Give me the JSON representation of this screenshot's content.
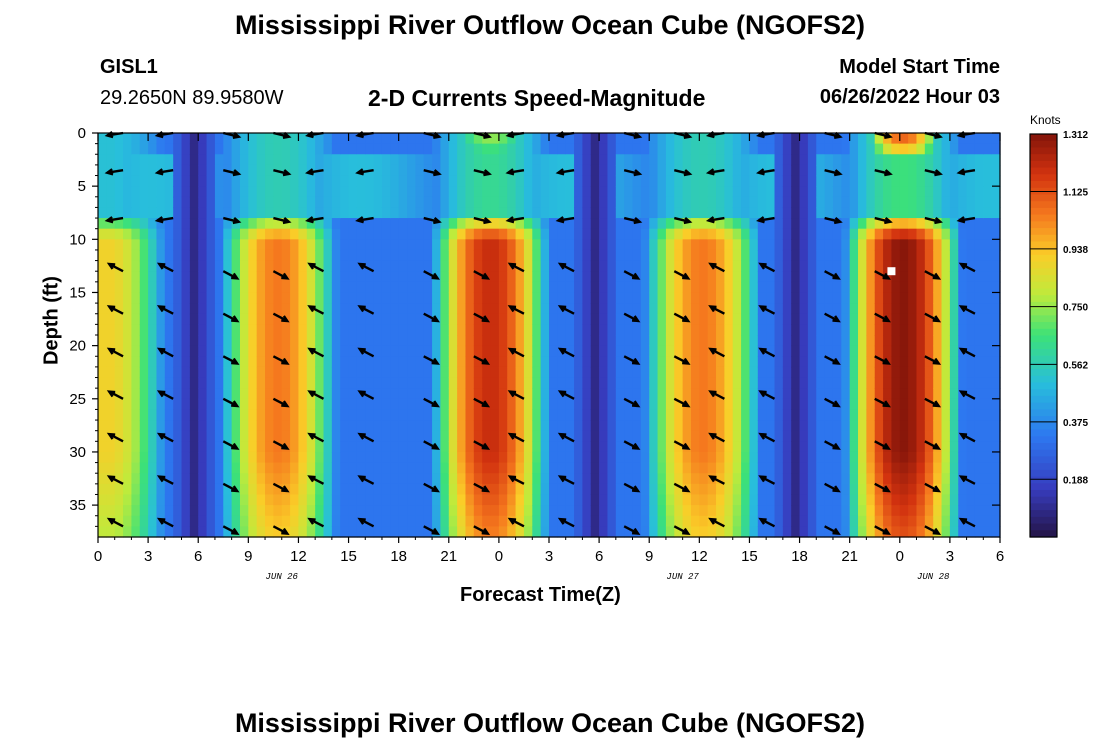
{
  "page": {
    "title": "Mississippi River Outflow Ocean Cube (NGOFS2)",
    "title_repeat": "Mississippi River Outflow Ocean Cube (NGOFS2)",
    "station_id": "GISL1",
    "coordinates": "29.2650N  89.9580W",
    "subtitle": "2-D Currents Speed-Magnitude",
    "model_start_label": "Model Start Time",
    "model_start_value": "06/26/2022 Hour 03"
  },
  "chart_data": {
    "type": "heatmap",
    "title": "2-D Currents Speed-Magnitude",
    "xlabel": "Forecast Time(Z)",
    "ylabel": "Depth (ft)",
    "x_hours_range": [
      0,
      54
    ],
    "xlim_tick_labels": [
      "0",
      "3",
      "6",
      "9",
      "12",
      "15",
      "18",
      "21",
      "0",
      "3",
      "6",
      "9",
      "12",
      "15",
      "18",
      "21",
      "0",
      "3",
      "6"
    ],
    "date_labels": [
      {
        "label": "JUN 26",
        "hour": 11
      },
      {
        "label": "JUN 27",
        "hour": 35
      },
      {
        "label": "JUN 28",
        "hour": 50
      }
    ],
    "y_ticks": [
      "0",
      "5",
      "10",
      "15",
      "20",
      "25",
      "30",
      "35"
    ],
    "ylim": [
      0,
      38
    ],
    "colorbar": {
      "unit": "Knots",
      "min": 0.0,
      "max": 1.312,
      "tick_labels": [
        "1.312",
        "1.125",
        "0.938",
        "0.750",
        "0.562",
        "0.375",
        "0.188"
      ],
      "tick_values": [
        1.312,
        1.125,
        0.938,
        0.75,
        0.562,
        0.375,
        0.188
      ]
    },
    "speed_peaks": [
      {
        "center_hour": 0.5,
        "peak": 0.9
      },
      {
        "center_hour": 10.8,
        "peak": 1.05
      },
      {
        "center_hour": 23.5,
        "peak": 1.2
      },
      {
        "center_hour": 36.2,
        "peak": 1.05
      },
      {
        "center_hour": 48.2,
        "peak": 1.3
      }
    ],
    "speed_minima_hours": [
      5.8,
      29.8,
      41.8
    ],
    "surface_peaks": [
      {
        "center_hour": 23.5,
        "peak": 0.75
      },
      {
        "center_hour": 48.2,
        "peak": 1.1
      }
    ],
    "marker": {
      "hour": 47.5,
      "depth": 13
    }
  }
}
